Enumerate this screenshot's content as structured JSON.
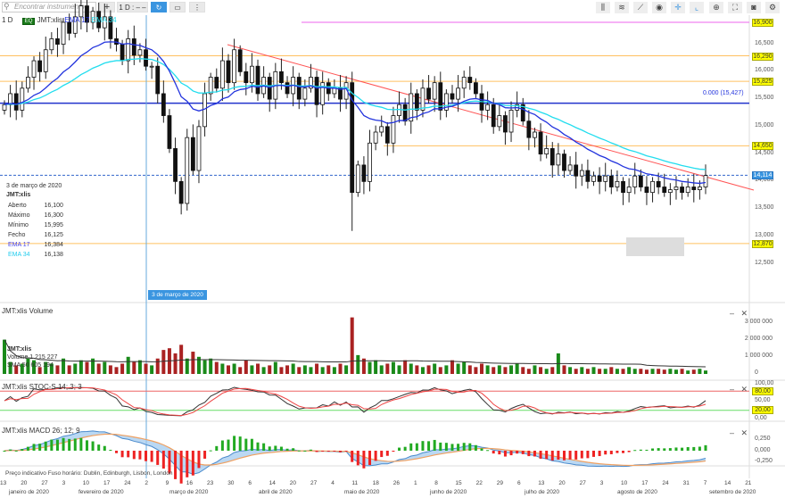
{
  "toolbar": {
    "search_placeholder": "Encontrar instrumento",
    "add": "+",
    "interval": "1 D : – –",
    "refresh_icon": "refresh-icon",
    "right_icons": [
      "bar-chart-icon",
      "indicators-icon",
      "draw-line-icon",
      "eye-icon",
      "crosshair-icon",
      "chart-type-icon",
      "zoom-icon",
      "fullscreen-icon",
      "camera-icon",
      "settings-icon"
    ]
  },
  "legend": {
    "interval": "1 D",
    "badge": "EQ",
    "symbol": "JMT:xlis",
    "ema17": "EMA 17",
    "ema34": "EMA 34"
  },
  "info": {
    "date": "3 de março de 2020",
    "symbol": "JMT:xlis",
    "rows": [
      [
        "Aberto",
        "16,100"
      ],
      [
        "Máximo",
        "16,300"
      ],
      [
        "Mínimo",
        "15,995"
      ],
      [
        "Fecho",
        "16,125"
      ],
      [
        "EMA 17",
        "16,384"
      ],
      [
        "EMA 34",
        "16,138"
      ]
    ]
  },
  "price_axis": [
    "16,500",
    "16,000",
    "15,500",
    "15,000",
    "14,500",
    "14,000",
    "13,500",
    "13,000",
    "12,500"
  ],
  "levels": {
    "l1": "16,900",
    "l2": "16,290",
    "l3": "15,825",
    "fib": "0.000 (15,427)",
    "l4": "14,650",
    "last": "14,114",
    "l5": "12,870"
  },
  "colors": {
    "up": "#000000",
    "ema17": "#2233dd",
    "ema34": "#22ddee",
    "trend": "#ff5555",
    "level": "#ffc060",
    "hline": "#2233cc",
    "volUp": "#1a8a1a",
    "volDown": "#aa2222"
  },
  "volume": {
    "title": "JMT:xlis  Volume",
    "symbol": "JMT:xlis",
    "vol": "Volume  1 215 227",
    "sma": "SMA 50    605 194",
    "axis": [
      "3 000 000",
      "2 000 000",
      "1 000 000",
      "0"
    ]
  },
  "stoch": {
    "title": "JMT:xlis  STOC-S 14; 3; 3",
    "axis": [
      "100,00",
      "50,00",
      "0,00"
    ],
    "hi": "80,00",
    "lo": "20,00"
  },
  "macd": {
    "title": "JMT:xlis  MACD 26; 12; 9",
    "axis": [
      "0,250",
      "0,000",
      "-0,250"
    ]
  },
  "panel_ctl": {
    "minimize": "–",
    "close": "✕"
  },
  "footer": "Preço indicativo   Fuso horário: Dublin, Edinburgh, Lisbon, London",
  "date_ticks": [
    "13",
    "20",
    "27",
    "3",
    "10",
    "17",
    "24",
    "2",
    "9",
    "16",
    "23",
    "30",
    "6",
    "14",
    "20",
    "27",
    "4",
    "11",
    "18",
    "26",
    "1",
    "8",
    "15",
    "22",
    "29",
    "6",
    "13",
    "20",
    "27",
    "3",
    "10",
    "17",
    "24",
    "31",
    "7",
    "14",
    "21"
  ],
  "crosshair_date": "3 de março de 2020",
  "months": [
    "janeiro de 2020",
    "fevereiro de 2020",
    "março de 2020",
    "abril de 2020",
    "maio de 2020",
    "junho de 2020",
    "julho de 2020",
    "agosto de 2020",
    "setembro de 2020"
  ],
  "chart_data": {
    "type": "candlestick",
    "symbol": "JMT:xlis",
    "ylim": [
      12.3,
      17.2
    ],
    "closes": [
      15.4,
      15.6,
      15.3,
      15.7,
      15.9,
      16.2,
      16.0,
      16.4,
      16.6,
      16.5,
      16.9,
      16.7,
      17.0,
      17.2,
      16.9,
      17.1,
      16.8,
      17.0,
      16.6,
      16.5,
      16.2,
      16.6,
      16.3,
      16.4,
      16.1,
      16.1,
      15.6,
      15.2,
      14.6,
      14.0,
      13.6,
      14.8,
      14.2,
      15.0,
      15.6,
      15.9,
      15.7,
      16.2,
      15.8,
      16.4,
      16.0,
      15.8,
      16.1,
      15.6,
      15.9,
      15.5,
      16.0,
      15.8,
      15.6,
      15.9,
      15.5,
      15.7,
      15.9,
      15.4,
      15.8,
      15.6,
      15.7,
      15.5,
      15.8,
      13.8,
      14.3,
      14.0,
      14.7,
      14.9,
      15.0,
      14.7,
      15.2,
      15.4,
      15.1,
      15.6,
      15.3,
      15.7,
      15.5,
      15.8,
      15.3,
      15.6,
      15.5,
      15.7,
      15.9,
      15.8,
      15.6,
      15.3,
      15.4,
      15.0,
      15.2,
      14.9,
      15.3,
      15.4,
      15.1,
      14.8,
      14.9,
      14.5,
      14.6,
      14.3,
      14.5,
      14.2,
      14.3,
      14.1,
      14.2,
      14.0,
      14.1,
      14.0,
      14.1,
      13.9,
      14.0,
      13.8,
      13.9,
      14.1,
      13.9,
      13.8,
      14.0,
      13.9,
      13.8,
      13.85,
      13.9,
      13.8,
      13.9,
      13.85,
      13.9,
      14.11
    ],
    "volumes_k": [
      2000,
      700,
      500,
      600,
      900,
      800,
      400,
      700,
      600,
      500,
      900,
      500,
      600,
      800,
      700,
      900,
      600,
      700,
      500,
      400,
      600,
      1000,
      700,
      800,
      600,
      500,
      900,
      1400,
      1500,
      1200,
      1700,
      900,
      1300,
      1000,
      800,
      900,
      700,
      600,
      500,
      600,
      400,
      800,
      500,
      600,
      400,
      500,
      700,
      400,
      500,
      600,
      400,
      500,
      400,
      600,
      400,
      500,
      400,
      600,
      500,
      3300,
      1100,
      900,
      700,
      800,
      500,
      600,
      700,
      500,
      800,
      600,
      500,
      400,
      500,
      600,
      400,
      500,
      800,
      600,
      700,
      500,
      400,
      600,
      500,
      400,
      500,
      400,
      500,
      600,
      400,
      300,
      500,
      400,
      300,
      400,
      1200,
      500,
      400,
      300,
      400,
      300,
      400,
      300,
      300,
      400,
      300,
      300,
      400,
      300,
      300,
      250,
      300,
      300,
      250,
      300,
      250,
      300,
      200,
      250,
      300,
      200
    ],
    "ema_periods": [
      17,
      34
    ]
  }
}
